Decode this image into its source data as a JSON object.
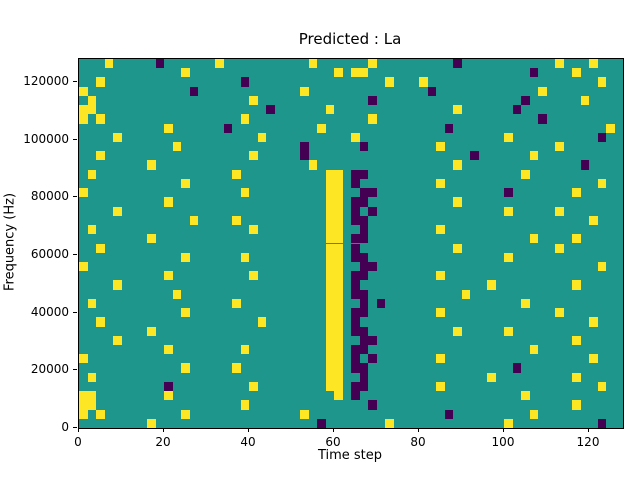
{
  "title": "Predicted : La",
  "axes": {
    "xlabel": "Time step",
    "ylabel": "Frequency (Hz)"
  },
  "chart_data": {
    "type": "heatmap",
    "title": "Predicted : La",
    "xlabel": "Time step",
    "ylabel": "Frequency (Hz)",
    "xlim": [
      0,
      128
    ],
    "ylim": [
      0,
      128000
    ],
    "x_ticks": [
      0,
      20,
      40,
      60,
      80,
      100,
      120
    ],
    "y_ticks": [
      0,
      20000,
      40000,
      60000,
      80000,
      100000,
      120000
    ],
    "grid": false,
    "legend": false,
    "colors": {
      "background": "#1f968b",
      "yellow": "#fde725",
      "purple": "#440154",
      "spine": "#000000"
    },
    "value_legend": {
      ".": "mid (teal)",
      "y": "high (yellow)",
      "p": "low (purple)"
    },
    "grid_cols": 64,
    "grid_rows": 40,
    "features": [
      "dense yellow vertical band around time step 58-62 between ~10000 and ~90000 Hz",
      "dark purple cluster just right of the band around time steps 64-70",
      "sparse random yellow and purple speckles over teal background"
    ],
    "rows": [
      [
        "...y....",
        ".p......",
        "y.......",
        "...y....",
        "..y.....",
        "....p...",
        "........",
        "y...y..."
      ],
      [
        "........",
        "....y...",
        "........",
        "......y.",
        "yy......",
        "........",
        ".....p..",
        "..y....."
      ],
      [
        "..y.....",
        "........",
        "...p....",
        "........",
        "....y...",
        "y.......",
        "........",
        ".....y.."
      ],
      [
        "y.......",
        ".....p..",
        "........",
        "..y.....",
        "........",
        ".p......",
        "......y.",
        "........"
      ],
      [
        ".y......",
        "........",
        "....y...",
        "........",
        "..p.....",
        "........",
        "....p...",
        "...y...."
      ],
      [
        "yy......",
        "........",
        "......p.",
        ".....y..",
        "........",
        "....y...",
        "...p....",
        "........"
      ],
      [
        "y.y.....",
        "........",
        "...y....",
        "........",
        "..y.....",
        "........",
        "......p.",
        "........"
      ],
      [
        "........",
        "..y.....",
        ".p......",
        "....y...",
        "........",
        "...p....",
        "........",
        "......y."
      ],
      [
        "....y...",
        "........",
        ".....y..",
        "........",
        "y.......",
        "........",
        "..y.....",
        ".....p.."
      ],
      [
        "........",
        "...y....",
        "........",
        "..p.....",
        ".p......",
        "..y.....",
        "........",
        "y......."
      ],
      [
        "..y.....",
        "........",
        "....y...",
        "..p.....",
        "........",
        "......p.",
        ".....y..",
        "........"
      ],
      [
        "........",
        "y.......",
        "........",
        "...y....",
        "........",
        "....y...",
        "........",
        "...p...."
      ],
      [
        ".y......",
        "........",
        "..y.....",
        ".....yy.",
        "pp......",
        "........",
        "....y...",
        "........"
      ],
      [
        "........",
        "....y...",
        "........",
        ".....yy.",
        "p.......",
        "..y.....",
        "........",
        ".....y.."
      ],
      [
        "y.......",
        "........",
        "...y....",
        ".....yy.",
        ".pp.....",
        "........",
        "..p.....",
        "..y....."
      ],
      [
        "........",
        "..y.....",
        "........",
        ".....yy.",
        "pp......",
        "....y...",
        "........",
        "........"
      ],
      [
        "....y...",
        "........",
        "........",
        ".....yy.",
        "p.p.....",
        "........",
        "..y.....",
        "y......."
      ],
      [
        "........",
        ".....y..",
        "..y.....",
        ".....yy.",
        "pp......",
        "........",
        "........",
        "....y..."
      ],
      [
        ".y......",
        "........",
        "....y...",
        ".....yy.",
        ".p......",
        "..y.....",
        "........",
        "........"
      ],
      [
        "........",
        "y.......",
        "........",
        ".....yy.",
        "pp......",
        "........",
        ".....y..",
        "..y....."
      ],
      [
        "..y.....",
        "........",
        "........",
        ".....yy.",
        "p.......",
        "....y...",
        "........",
        "y......."
      ],
      [
        "........",
        "....y...",
        "...y....",
        ".....yy.",
        "pp......",
        "........",
        "..y.....",
        "........"
      ],
      [
        "y.......",
        "........",
        "........",
        ".....yy.",
        ".pp.....",
        "........",
        "........",
        ".....y.."
      ],
      [
        "........",
        "..y.....",
        "....y...",
        ".....yy.",
        "pp......",
        "..y.....",
        "........",
        "........"
      ],
      [
        "....y...",
        "........",
        "........",
        ".....yy.",
        "p.......",
        "........",
        "y.......",
        "..y....."
      ],
      [
        "........",
        "...y....",
        "........",
        ".....yy.",
        "pp......",
        ".....y..",
        "........",
        "........"
      ],
      [
        ".y......",
        "........",
        "..y.....",
        ".....yy.",
        ".p.p....",
        "........",
        "....y...",
        "........"
      ],
      [
        "........",
        "....y...",
        "........",
        ".....yy.",
        "pp......",
        "..y.....",
        "........",
        "y......."
      ],
      [
        "..y.....",
        "........",
        ".....y..",
        ".....yy.",
        "p.......",
        "........",
        "........",
        "....y..."
      ],
      [
        "........",
        "y.......",
        "........",
        ".....yy.",
        "pp......",
        "....y...",
        "..y.....",
        "........"
      ],
      [
        "....y...",
        "........",
        "........",
        ".....yy.",
        ".pp.....",
        "........",
        "........",
        "..y....."
      ],
      [
        "........",
        "..y.....",
        "...y....",
        ".....yy.",
        "pp......",
        "........",
        ".....y..",
        "........"
      ],
      [
        "y.......",
        "........",
        "........",
        ".....yy.",
        "p.p.....",
        "..y.....",
        "........",
        "....y..."
      ],
      [
        "........",
        "....y...",
        "..y.....",
        ".....yy.",
        "pp......",
        "........",
        "...p....",
        "........"
      ],
      [
        ".y......",
        "........",
        "........",
        ".....yy.",
        ".p......",
        "........",
        "y.......",
        "..y....."
      ],
      [
        "........",
        "..p.....",
        "....y...",
        ".....yy.",
        "pp......",
        "..y.....",
        "........",
        ".....y.."
      ],
      [
        "yy......",
        "..y.....",
        "........",
        "......y.",
        "p.......",
        "........",
        "....y...",
        "........"
      ],
      [
        "yy......",
        "........",
        "...y....",
        "........",
        "..p.....",
        "........",
        "........",
        "..y....."
      ],
      [
        "y.y.....",
        "....y...",
        "........",
        "..y.....",
        "........",
        "...p....",
        ".....y..",
        "........"
      ],
      [
        "........",
        "y.......",
        "........",
        "....p...",
        "....y...",
        "........",
        "..y.....",
        ".....p.."
      ]
    ]
  }
}
